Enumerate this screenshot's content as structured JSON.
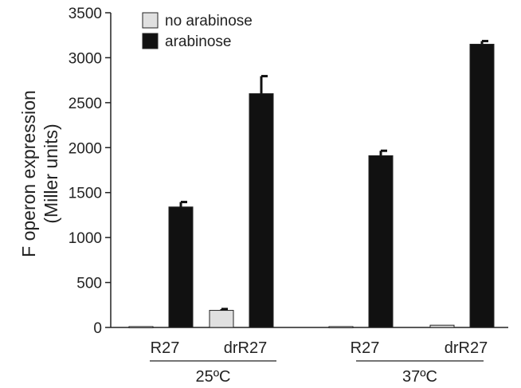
{
  "chart_data": {
    "type": "bar",
    "title": "",
    "ylabel_lines": [
      "F operon expression",
      "(Miller units)"
    ],
    "ylim": [
      0,
      3500
    ],
    "yticks": [
      0,
      500,
      1000,
      1500,
      2000,
      2500,
      3000,
      3500
    ],
    "grid": false,
    "legend_position": "top-left",
    "categories": [
      "R27",
      "drR27",
      "R27",
      "drR27"
    ],
    "groups": [
      {
        "label": "25ºC",
        "categories": [
          "R27",
          "drR27"
        ]
      },
      {
        "label": "37ºC",
        "categories": [
          "R27",
          "drR27"
        ]
      }
    ],
    "series": [
      {
        "name": "no arabinose",
        "color": "#e0e0e0",
        "values": [
          10,
          190,
          10,
          25
        ],
        "errors": [
          0,
          15,
          0,
          0
        ]
      },
      {
        "name": "arabinose",
        "color": "#111111",
        "values": [
          1340,
          2600,
          1910,
          3150
        ],
        "errors": [
          55,
          195,
          55,
          35
        ]
      }
    ]
  }
}
